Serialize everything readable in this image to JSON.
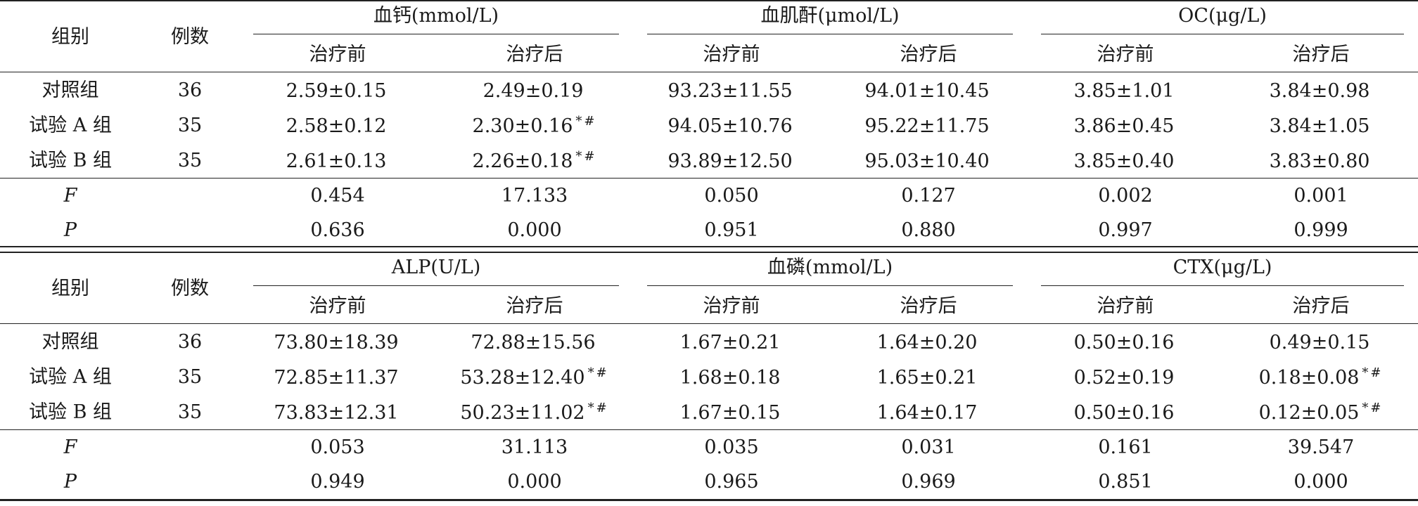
{
  "tables": [
    {
      "id": "upper",
      "group_header": "组别",
      "n_header": "例数",
      "measures": [
        "血钙(mmol/L)",
        "血肌酐(μmol/L)",
        "OC(μg/L)"
      ],
      "sub_headers": [
        "治疗前",
        "治疗后",
        "治疗前",
        "治疗后",
        "治疗前",
        "治疗后"
      ],
      "rows": [
        {
          "group": "对照组",
          "n": "36",
          "values": [
            "2.59±0.15",
            "2.49±0.19",
            "93.23±11.55",
            "94.01±10.45",
            "3.85±1.01",
            "3.84±0.98"
          ],
          "marks": [
            "",
            "",
            "",
            "",
            "",
            ""
          ]
        },
        {
          "group": "试验 A 组",
          "n": "35",
          "values": [
            "2.58±0.12",
            "2.30±0.16",
            "94.05±10.76",
            "95.22±11.75",
            "3.86±0.45",
            "3.84±1.05"
          ],
          "marks": [
            "",
            "*#",
            "",
            "",
            "",
            ""
          ]
        },
        {
          "group": "试验 B 组",
          "n": "35",
          "values": [
            "2.61±0.13",
            "2.26±0.18",
            "93.89±12.50",
            "95.03±10.40",
            "3.85±0.40",
            "3.83±0.80"
          ],
          "marks": [
            "",
            "*#",
            "",
            "",
            "",
            ""
          ]
        }
      ],
      "stats": [
        {
          "label": "F",
          "values": [
            "0.454",
            "17.133",
            "0.050",
            "0.127",
            "0.002",
            "0.001"
          ]
        },
        {
          "label": "P",
          "values": [
            "0.636",
            "0.000",
            "0.951",
            "0.880",
            "0.997",
            "0.999"
          ]
        }
      ]
    },
    {
      "id": "lower",
      "group_header": "组别",
      "n_header": "例数",
      "measures": [
        "ALP(U/L)",
        "血磷(mmol/L)",
        "CTX(μg/L)"
      ],
      "sub_headers": [
        "治疗前",
        "治疗后",
        "治疗前",
        "治疗后",
        "治疗前",
        "治疗后"
      ],
      "rows": [
        {
          "group": "对照组",
          "n": "36",
          "values": [
            "73.80±18.39",
            "72.88±15.56",
            "1.67±0.21",
            "1.64±0.20",
            "0.50±0.16",
            "0.49±0.15"
          ],
          "marks": [
            "",
            "",
            "",
            "",
            "",
            ""
          ]
        },
        {
          "group": "试验 A 组",
          "n": "35",
          "values": [
            "72.85±11.37",
            "53.28±12.40",
            "1.68±0.18",
            "1.65±0.21",
            "0.52±0.19",
            "0.18±0.08"
          ],
          "marks": [
            "",
            "*#",
            "",
            "",
            "",
            "*#"
          ]
        },
        {
          "group": "试验 B 组",
          "n": "35",
          "values": [
            "73.83±12.31",
            "50.23±11.02",
            "1.67±0.15",
            "1.64±0.17",
            "0.50±0.16",
            "0.12±0.05"
          ],
          "marks": [
            "",
            "*#",
            "",
            "",
            "",
            "*#"
          ]
        }
      ],
      "stats": [
        {
          "label": "F",
          "values": [
            "0.053",
            "31.113",
            "0.035",
            "0.031",
            "0.161",
            "39.547"
          ]
        },
        {
          "label": "P",
          "values": [
            "0.949",
            "0.000",
            "0.965",
            "0.969",
            "0.851",
            "0.000"
          ]
        }
      ]
    }
  ]
}
